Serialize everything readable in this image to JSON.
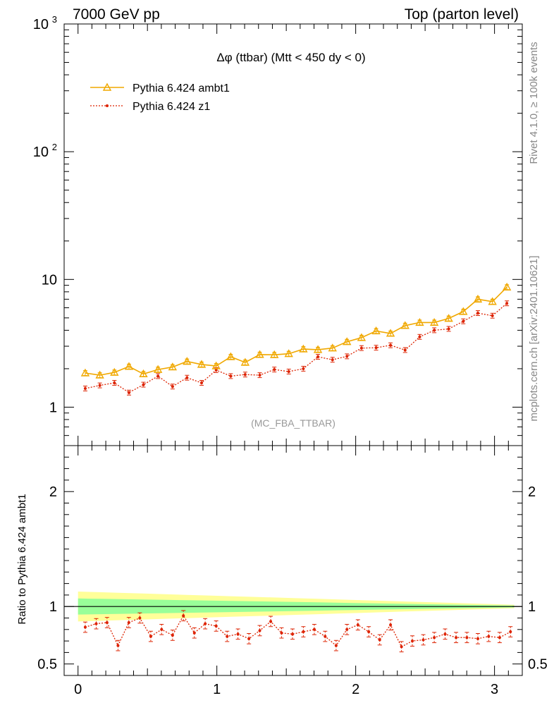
{
  "header": {
    "left": "7000 GeV pp",
    "right": "Top (parton level)"
  },
  "side_labels": {
    "rivet": "Rivet 4.1.0, ≥ 100k events",
    "mcplots": "mcplots.cern.ch [arXiv:2401.10621]"
  },
  "chart_data": [
    {
      "type": "line",
      "panel": "main",
      "title": "Δφ (ttbar) (Mtt < 450 dy < 0)",
      "watermark": "(MC_FBA_TTBAR)",
      "yscale": "log",
      "xlim": [
        -0.1,
        3.2
      ],
      "ylim": [
        0.5,
        1000
      ],
      "grid": false,
      "legend_position": "top-left",
      "y_ticks": [
        {
          "value": 1,
          "label": "1"
        },
        {
          "value": 10,
          "label": "10"
        },
        {
          "value": 100,
          "label": "10",
          "exp": "2"
        },
        {
          "value": 1000,
          "label": "10",
          "exp": "3"
        }
      ],
      "x": [
        0.052,
        0.157,
        0.262,
        0.367,
        0.471,
        0.576,
        0.681,
        0.785,
        0.89,
        0.995,
        1.1,
        1.204,
        1.309,
        1.414,
        1.518,
        1.623,
        1.728,
        1.833,
        1.937,
        2.042,
        2.147,
        2.251,
        2.356,
        2.461,
        2.566,
        2.67,
        2.775,
        2.88,
        2.985,
        3.089
      ],
      "series": [
        {
          "name": "Pythia 6.424 ambt1",
          "color": "#f0a800",
          "marker": "triangle",
          "values": [
            1.85,
            1.78,
            1.87,
            2.08,
            1.82,
            1.97,
            2.06,
            2.28,
            2.16,
            2.1,
            2.48,
            2.24,
            2.58,
            2.57,
            2.62,
            2.85,
            2.82,
            2.9,
            3.25,
            3.5,
            3.95,
            3.78,
            4.35,
            4.6,
            4.6,
            4.95,
            5.6,
            7.0,
            6.7,
            8.7
          ]
        },
        {
          "name": "Pythia 6.424 z1",
          "color": "#dd2200",
          "marker": "dot",
          "values": [
            1.4,
            1.48,
            1.55,
            1.3,
            1.5,
            1.75,
            1.45,
            1.7,
            1.55,
            1.95,
            1.75,
            1.8,
            1.78,
            1.97,
            1.9,
            2.0,
            2.48,
            2.35,
            2.5,
            2.9,
            2.92,
            3.05,
            2.8,
            3.55,
            4.0,
            4.1,
            4.7,
            5.45,
            5.2,
            6.5
          ]
        }
      ]
    },
    {
      "type": "line",
      "panel": "ratio",
      "ylabel": "Ratio to Pythia 6.424 ambt1",
      "xlim": [
        -0.1,
        3.2
      ],
      "ylim": [
        0.4,
        2.4
      ],
      "x_ticks": [
        {
          "value": 0,
          "label": "0"
        },
        {
          "value": 1,
          "label": "1"
        },
        {
          "value": 2,
          "label": "2"
        },
        {
          "value": 3,
          "label": "3"
        }
      ],
      "y_ticks": [
        {
          "value": 0.5,
          "label": "0.5"
        },
        {
          "value": 1,
          "label": "1"
        },
        {
          "value": 2,
          "label": "2"
        }
      ],
      "reference_line": 1,
      "band_outer_halfwidth": {
        "start": 0.13,
        "end": 0.015,
        "color": "#ffff99"
      },
      "band_inner_halfwidth": {
        "start": 0.07,
        "end": 0.008,
        "color": "#99ff99"
      },
      "series": [
        {
          "name": "Pythia 6.424 z1",
          "color": "#dd2200",
          "x": [
            0.052,
            0.131,
            0.209,
            0.288,
            0.366,
            0.445,
            0.524,
            0.602,
            0.681,
            0.759,
            0.838,
            0.916,
            0.995,
            1.074,
            1.152,
            1.231,
            1.309,
            1.388,
            1.466,
            1.545,
            1.623,
            1.702,
            1.78,
            1.859,
            1.937,
            2.016,
            2.094,
            2.173,
            2.251,
            2.33,
            2.408,
            2.487,
            2.566,
            2.644,
            2.723,
            2.801,
            2.88,
            2.958,
            3.037,
            3.115
          ],
          "values": [
            0.82,
            0.85,
            0.86,
            0.66,
            0.86,
            0.9,
            0.74,
            0.8,
            0.75,
            0.92,
            0.77,
            0.85,
            0.83,
            0.74,
            0.76,
            0.72,
            0.79,
            0.87,
            0.77,
            0.76,
            0.78,
            0.8,
            0.74,
            0.66,
            0.8,
            0.84,
            0.78,
            0.71,
            0.84,
            0.65,
            0.7,
            0.71,
            0.73,
            0.76,
            0.73,
            0.73,
            0.72,
            0.74,
            0.73,
            0.78
          ]
        }
      ]
    }
  ]
}
